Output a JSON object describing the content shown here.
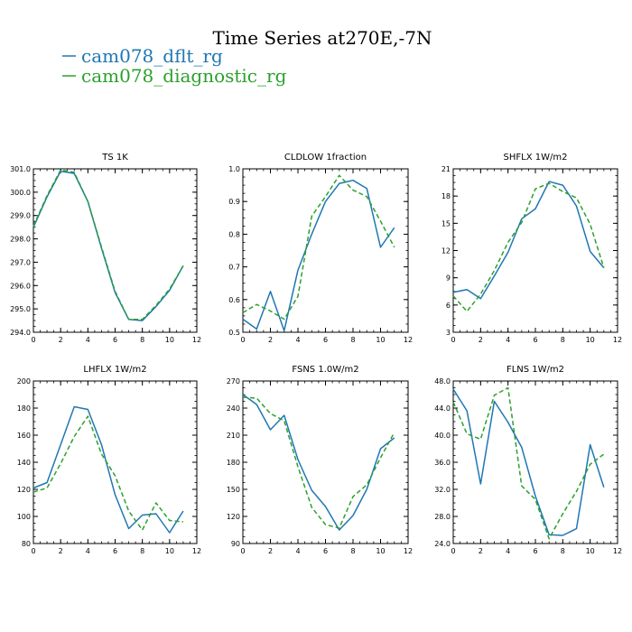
{
  "title": "Time Series at270E,-7N",
  "legend": [
    {
      "label": "cam078_dflt_rg",
      "color": "#1f77b4",
      "style": "solid"
    },
    {
      "label": "cam078_diagnostic_rg",
      "color": "#2ca02c",
      "style": "dashed"
    }
  ],
  "chart_data": [
    {
      "type": "line",
      "title": "TS   1K",
      "xlim": [
        0,
        12
      ],
      "ylim": [
        294.0,
        301.0
      ],
      "xticks": [
        0,
        2,
        4,
        6,
        8,
        10,
        12
      ],
      "yticks": [
        294.0,
        295.0,
        296.0,
        297.0,
        298.0,
        299.0,
        300.0,
        301.0
      ],
      "ytick_decimals": 1,
      "x": [
        0,
        1,
        2,
        3,
        4,
        5,
        6,
        7,
        8,
        9,
        10,
        11
      ],
      "series": [
        {
          "name": "cam078_dflt_rg",
          "values": [
            298.5,
            299.8,
            300.9,
            300.8,
            299.6,
            297.6,
            295.7,
            294.55,
            294.5,
            295.1,
            295.8,
            296.85
          ]
        },
        {
          "name": "cam078_diagnostic_rg",
          "values": [
            298.55,
            299.85,
            300.95,
            300.85,
            299.6,
            297.65,
            295.75,
            294.55,
            294.55,
            295.15,
            295.85,
            296.85
          ]
        }
      ]
    },
    {
      "type": "line",
      "title": "CLDLOW   1fraction",
      "xlim": [
        0,
        12
      ],
      "ylim": [
        0.5,
        1.0
      ],
      "xticks": [
        0,
        2,
        4,
        6,
        8,
        10,
        12
      ],
      "yticks": [
        0.5,
        0.6,
        0.7,
        0.8,
        0.9,
        1.0
      ],
      "ytick_decimals": 1,
      "x": [
        0,
        1,
        2,
        3,
        4,
        5,
        6,
        7,
        8,
        9,
        10,
        11
      ],
      "series": [
        {
          "name": "cam078_dflt_rg",
          "values": [
            0.54,
            0.51,
            0.625,
            0.505,
            0.69,
            0.8,
            0.9,
            0.955,
            0.965,
            0.94,
            0.76,
            0.82
          ]
        },
        {
          "name": "cam078_diagnostic_rg",
          "values": [
            0.56,
            0.585,
            0.565,
            0.54,
            0.61,
            0.855,
            0.915,
            0.98,
            0.935,
            0.915,
            0.84,
            0.76
          ]
        }
      ]
    },
    {
      "type": "line",
      "title": "SHFLX   1W/m2",
      "xlim": [
        0,
        12
      ],
      "ylim": [
        3,
        21
      ],
      "xticks": [
        0,
        2,
        4,
        6,
        8,
        10,
        12
      ],
      "yticks": [
        3,
        6,
        9,
        12,
        15,
        18,
        21
      ],
      "ytick_decimals": 0,
      "x": [
        0,
        1,
        2,
        3,
        4,
        5,
        6,
        7,
        8,
        9,
        10,
        11
      ],
      "series": [
        {
          "name": "cam078_dflt_rg",
          "values": [
            7.4,
            7.7,
            6.7,
            9.2,
            11.8,
            15.5,
            16.6,
            19.6,
            19.2,
            16.9,
            11.9,
            10.1
          ]
        },
        {
          "name": "cam078_diagnostic_rg",
          "values": [
            7.0,
            5.3,
            7.2,
            9.8,
            12.9,
            15.1,
            18.8,
            19.4,
            18.5,
            17.8,
            14.9,
            10.1
          ]
        }
      ]
    },
    {
      "type": "line",
      "title": "LHFLX   1W/m2",
      "xlim": [
        0,
        12
      ],
      "ylim": [
        80,
        200
      ],
      "xticks": [
        0,
        2,
        4,
        6,
        8,
        10,
        12
      ],
      "yticks": [
        80,
        100,
        120,
        140,
        160,
        180,
        200
      ],
      "ytick_decimals": 0,
      "x": [
        0,
        1,
        2,
        3,
        4,
        5,
        6,
        7,
        8,
        9,
        10,
        11
      ],
      "series": [
        {
          "name": "cam078_dflt_rg",
          "values": [
            121,
            125,
            153,
            181,
            179,
            153,
            116,
            91,
            101,
            102,
            88,
            104
          ]
        },
        {
          "name": "cam078_diagnostic_rg",
          "values": [
            118,
            121,
            139,
            159,
            174,
            146,
            130,
            104,
            90,
            110,
            97,
            96
          ]
        }
      ]
    },
    {
      "type": "line",
      "title": "FSNS   1.0W/m2",
      "xlim": [
        0,
        12
      ],
      "ylim": [
        90,
        270
      ],
      "xticks": [
        0,
        2,
        4,
        6,
        8,
        10,
        12
      ],
      "yticks": [
        90,
        120,
        150,
        180,
        210,
        240,
        270
      ],
      "ytick_decimals": 0,
      "x": [
        0,
        1,
        2,
        3,
        4,
        5,
        6,
        7,
        8,
        9,
        10,
        11
      ],
      "series": [
        {
          "name": "cam078_dflt_rg",
          "values": [
            255,
            244,
            216,
            232,
            183,
            149,
            131,
            105,
            121,
            150,
            195,
            207
          ]
        },
        {
          "name": "cam078_diagnostic_rg",
          "values": [
            252,
            251,
            234,
            226,
            175,
            130,
            111,
            107,
            142,
            155,
            185,
            213
          ]
        }
      ]
    },
    {
      "type": "line",
      "title": "FLNS   1W/m2",
      "xlim": [
        0,
        12
      ],
      "ylim": [
        24.0,
        48.0
      ],
      "xticks": [
        0,
        2,
        4,
        6,
        8,
        10,
        12
      ],
      "yticks": [
        24.0,
        28.0,
        32.0,
        36.0,
        40.0,
        44.0,
        48.0
      ],
      "ytick_decimals": 1,
      "x": [
        0,
        1,
        2,
        3,
        4,
        5,
        6,
        7,
        8,
        9,
        10,
        11
      ],
      "series": [
        {
          "name": "cam078_dflt_rg",
          "values": [
            46.8,
            43.6,
            32.8,
            45.0,
            41.9,
            38.2,
            31.0,
            25.3,
            25.2,
            26.2,
            38.6,
            32.3
          ]
        },
        {
          "name": "cam078_diagnostic_rg",
          "values": [
            44.9,
            40.2,
            39.4,
            45.9,
            47.0,
            32.5,
            30.5,
            24.7,
            28.4,
            31.7,
            35.7,
            37.2
          ]
        }
      ]
    }
  ]
}
